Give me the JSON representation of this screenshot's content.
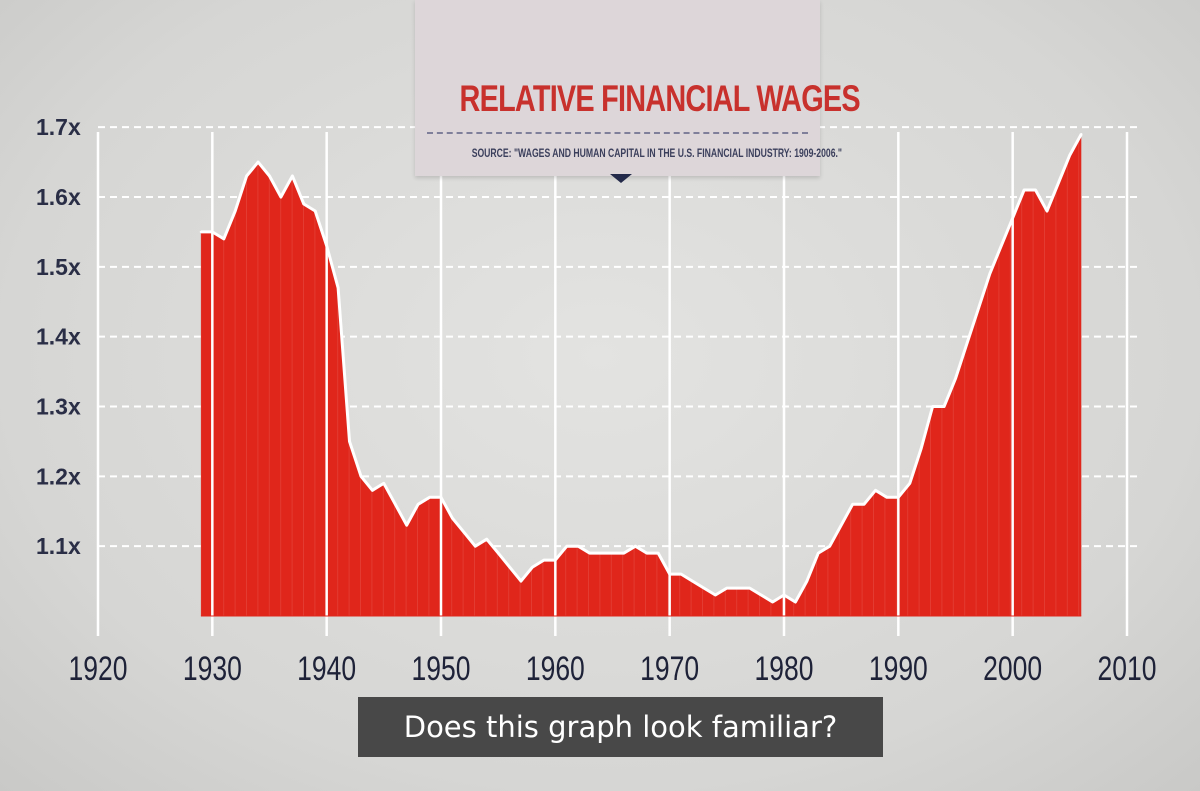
{
  "title": "RELATIVE FINANCIAL WAGES",
  "source": "SOURCE: \"WAGES AND HUMAN CAPITAL IN THE U.S. FINANCIAL INDUSTRY: 1909-2006.\"",
  "caption": "Does this graph look familiar?",
  "colors": {
    "area": "#e0261b",
    "line": "#ffffff",
    "grid": "#ffffff",
    "background": "#d9d9d7"
  },
  "chart_data": {
    "type": "area",
    "title": "RELATIVE FINANCIAL WAGES",
    "xlim": [
      1920,
      2010
    ],
    "ylim": [
      1.0,
      1.7
    ],
    "x_ticks": [
      1920,
      1930,
      1940,
      1950,
      1960,
      1970,
      1980,
      1990,
      2000,
      2010
    ],
    "x_tick_labels": [
      "1920",
      "1930",
      "1940",
      "1950",
      "1960",
      "1970",
      "1980",
      "1990",
      "2000",
      "2010"
    ],
    "y_ticks": [
      1.1,
      1.2,
      1.3,
      1.4,
      1.5,
      1.6,
      1.7
    ],
    "y_tick_labels": [
      "1.1x",
      "1.2x",
      "1.3x",
      "1.4x",
      "1.5x",
      "1.6x",
      "1.7x"
    ],
    "grid": true,
    "x": [
      1929,
      1930,
      1931,
      1932,
      1933,
      1934,
      1935,
      1936,
      1937,
      1938,
      1939,
      1940,
      1941,
      1942,
      1943,
      1944,
      1945,
      1946,
      1947,
      1948,
      1949,
      1950,
      1951,
      1952,
      1953,
      1954,
      1955,
      1956,
      1957,
      1958,
      1959,
      1960,
      1961,
      1962,
      1963,
      1964,
      1965,
      1966,
      1967,
      1968,
      1969,
      1970,
      1971,
      1972,
      1973,
      1974,
      1975,
      1976,
      1977,
      1978,
      1979,
      1980,
      1981,
      1982,
      1983,
      1984,
      1985,
      1986,
      1987,
      1988,
      1989,
      1990,
      1991,
      1992,
      1993,
      1994,
      1995,
      1996,
      1997,
      1998,
      1999,
      2000,
      2001,
      2002,
      2003,
      2004,
      2005,
      2006
    ],
    "values": [
      1.55,
      1.55,
      1.54,
      1.58,
      1.63,
      1.65,
      1.63,
      1.6,
      1.63,
      1.59,
      1.58,
      1.53,
      1.47,
      1.25,
      1.2,
      1.18,
      1.19,
      1.16,
      1.13,
      1.16,
      1.17,
      1.17,
      1.14,
      1.12,
      1.1,
      1.11,
      1.09,
      1.07,
      1.05,
      1.07,
      1.08,
      1.08,
      1.1,
      1.1,
      1.09,
      1.09,
      1.09,
      1.09,
      1.1,
      1.09,
      1.09,
      1.06,
      1.06,
      1.05,
      1.04,
      1.03,
      1.04,
      1.04,
      1.04,
      1.03,
      1.02,
      1.03,
      1.02,
      1.05,
      1.09,
      1.1,
      1.13,
      1.16,
      1.16,
      1.18,
      1.17,
      1.17,
      1.19,
      1.24,
      1.3,
      1.3,
      1.34,
      1.39,
      1.44,
      1.49,
      1.53,
      1.57,
      1.61,
      1.61,
      1.58,
      1.62,
      1.66,
      1.69
    ]
  }
}
